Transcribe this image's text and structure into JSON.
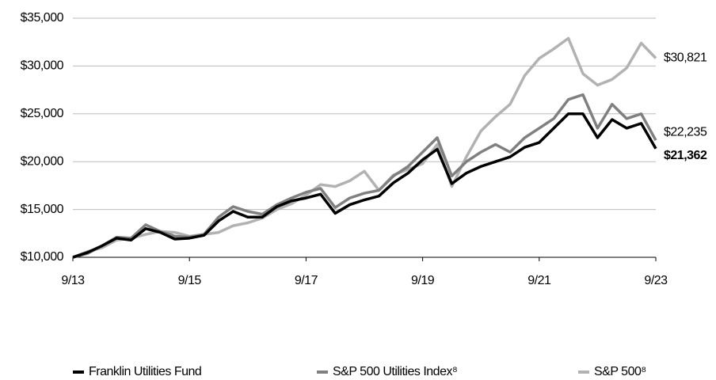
{
  "chart_data": {
    "type": "line",
    "categories": [
      "9/13",
      null,
      null,
      null,
      null,
      null,
      null,
      null,
      "9/15",
      null,
      null,
      null,
      null,
      null,
      null,
      null,
      "9/17",
      null,
      null,
      null,
      null,
      null,
      null,
      null,
      "9/19",
      null,
      null,
      null,
      null,
      null,
      null,
      null,
      "9/21",
      null,
      null,
      null,
      null,
      null,
      null,
      null,
      "9/23"
    ],
    "series": [
      {
        "name": "S&P 500⁸",
        "color": "#b2b2b2",
        "end_label": "$30,821",
        "values": [
          10000,
          10600,
          11000,
          11800,
          12000,
          12400,
          12700,
          12600,
          12200,
          12400,
          12600,
          13300,
          13600,
          14100,
          15000,
          15600,
          16500,
          17600,
          17400,
          18000,
          19000,
          17000,
          18600,
          19200,
          19800,
          21800,
          17400,
          20500,
          23200,
          24700,
          26000,
          29000,
          30800,
          31800,
          32900,
          29200,
          28000,
          28600,
          29800,
          32400,
          30821
        ]
      },
      {
        "name": "S&P 500 Utilities Index⁸",
        "color": "#808080",
        "end_label": "$22,235",
        "values": [
          10000,
          10400,
          11200,
          12100,
          12000,
          13400,
          12700,
          12200,
          12100,
          12400,
          14200,
          15300,
          14800,
          14500,
          15500,
          16200,
          16800,
          17200,
          15200,
          16200,
          16700,
          17000,
          18500,
          19500,
          21000,
          22500,
          18500,
          20000,
          21000,
          21800,
          21000,
          22500,
          23500,
          24500,
          26500,
          27000,
          23500,
          26000,
          24500,
          25000,
          22235
        ]
      },
      {
        "name": "Franklin Utilities Fund",
        "color": "#000000",
        "end_label": "$21,362",
        "values": [
          10000,
          10500,
          11200,
          12000,
          11800,
          13000,
          12600,
          11900,
          12000,
          12300,
          13800,
          14800,
          14200,
          14200,
          15300,
          15900,
          16200,
          16600,
          14600,
          15500,
          16000,
          16400,
          17800,
          18800,
          20200,
          21300,
          17700,
          18800,
          19500,
          20000,
          20500,
          21500,
          22000,
          23500,
          25000,
          25000,
          22500,
          24400,
          23500,
          24000,
          21362
        ]
      }
    ],
    "ylim": [
      10000,
      35000
    ],
    "yticks": [
      {
        "value": 10000,
        "label": "$10,000"
      },
      {
        "value": 15000,
        "label": "$15,000"
      },
      {
        "value": 20000,
        "label": "$20,000"
      },
      {
        "value": 25000,
        "label": "$25,000"
      },
      {
        "value": 30000,
        "label": "$30,000"
      },
      {
        "value": 35000,
        "label": "$35,000"
      }
    ],
    "grid": true,
    "legend": "bottom"
  }
}
